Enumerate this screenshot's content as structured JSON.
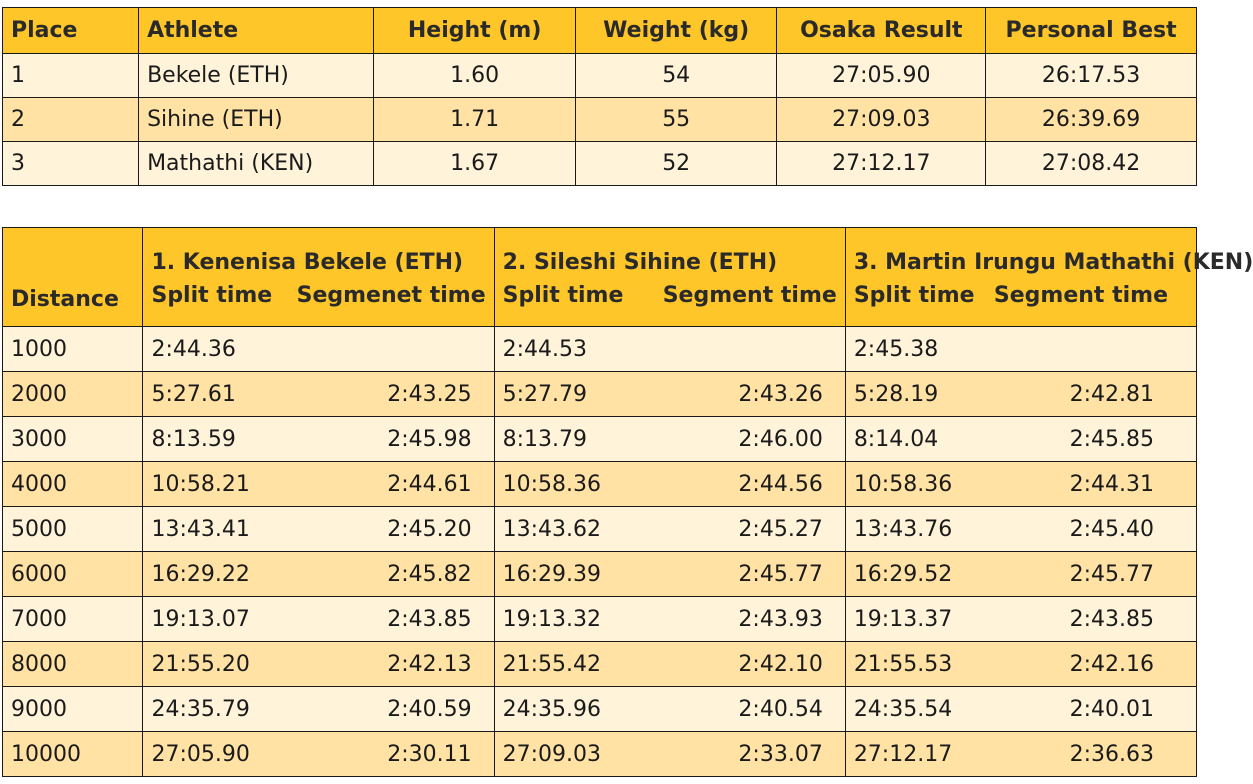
{
  "athletes_table": {
    "headers": [
      "Place",
      "Athlete",
      "Height (m)",
      "Weight (kg)",
      "Osaka Result",
      "Personal Best"
    ],
    "rows": [
      [
        "1",
        "Bekele (ETH)",
        "1.60",
        "54",
        "27:05.90",
        "26:17.53"
      ],
      [
        "2",
        "Sihine (ETH)",
        "1.71",
        "55",
        "27:09.03",
        "26:39.69"
      ],
      [
        "3",
        "Mathathi (KEN)",
        "1.67",
        "52",
        "27:12.17",
        "27:08.42"
      ]
    ]
  },
  "splits_table": {
    "distance_header": "Distance",
    "runners": [
      {
        "name": "1. Kenenisa Bekele (ETH)",
        "split_label": "Split time",
        "segment_label": "Segmenet time"
      },
      {
        "name": "2. Sileshi Sihine (ETH)",
        "split_label": "Split time",
        "segment_label": "Segment time"
      },
      {
        "name": "3. Martin Irungu Mathathi (KEN)",
        "split_label": "Split time",
        "segment_label": "Segment time"
      }
    ],
    "rows": [
      {
        "distance": "1000",
        "splits": [
          [
            "2:44.36",
            ""
          ],
          [
            "2:44.53",
            ""
          ],
          [
            "2:45.38",
            ""
          ]
        ]
      },
      {
        "distance": "2000",
        "splits": [
          [
            "5:27.61",
            "2:43.25"
          ],
          [
            "5:27.79",
            "2:43.26"
          ],
          [
            "5:28.19",
            "2:42.81"
          ]
        ]
      },
      {
        "distance": "3000",
        "splits": [
          [
            "8:13.59",
            "2:45.98"
          ],
          [
            "8:13.79",
            "2:46.00"
          ],
          [
            "8:14.04",
            "2:45.85"
          ]
        ]
      },
      {
        "distance": "4000",
        "splits": [
          [
            "10:58.21",
            "2:44.61"
          ],
          [
            "10:58.36",
            "2:44.56"
          ],
          [
            "10:58.36",
            "2:44.31"
          ]
        ]
      },
      {
        "distance": "5000",
        "splits": [
          [
            "13:43.41",
            "2:45.20"
          ],
          [
            "13:43.62",
            "2:45.27"
          ],
          [
            "13:43.76",
            "2:45.40"
          ]
        ]
      },
      {
        "distance": "6000",
        "splits": [
          [
            "16:29.22",
            "2:45.82"
          ],
          [
            "16:29.39",
            "2:45.77"
          ],
          [
            "16:29.52",
            "2:45.77"
          ]
        ]
      },
      {
        "distance": "7000",
        "splits": [
          [
            "19:13.07",
            "2:43.85"
          ],
          [
            "19:13.32",
            "2:43.93"
          ],
          [
            "19:13.37",
            "2:43.85"
          ]
        ]
      },
      {
        "distance": "8000",
        "splits": [
          [
            "21:55.20",
            "2:42.13"
          ],
          [
            "21:55.42",
            "2:42.10"
          ],
          [
            "21:55.53",
            "2:42.16"
          ]
        ]
      },
      {
        "distance": "9000",
        "splits": [
          [
            "24:35.79",
            "2:40.59"
          ],
          [
            "24:35.96",
            "2:40.54"
          ],
          [
            "24:35.54",
            "2:40.01"
          ]
        ]
      },
      {
        "distance": "10000",
        "splits": [
          [
            "27:05.90",
            "2:30.11"
          ],
          [
            "27:09.03",
            "2:33.07"
          ],
          [
            "27:12.17",
            "2:36.63"
          ]
        ]
      }
    ]
  },
  "colors": {
    "header_bg": "#ffc629",
    "row_light": "#fff3da",
    "row_dark": "#ffe2a4",
    "border": "#1a1a1a"
  }
}
